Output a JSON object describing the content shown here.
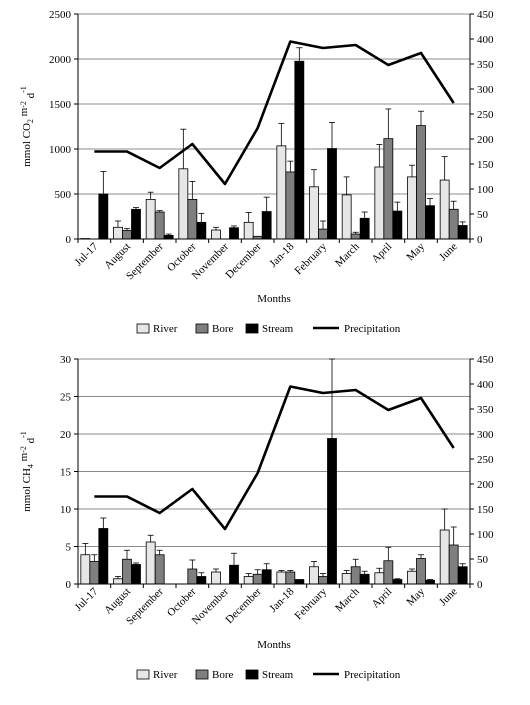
{
  "chart_data": [
    {
      "type": "bar",
      "categories": [
        "Jul-17",
        "August",
        "September",
        "October",
        "November",
        "December",
        "Jan-18",
        "February",
        "March",
        "April",
        "May",
        "June"
      ],
      "xlabel": "Months",
      "ylabel_main": "mmol CO",
      "ylabel_sub": "2",
      "ylabel_rest": " m",
      "ylabel_sup1": "-2",
      "ylabel_mid": " d",
      "ylabel_sup2": "-1",
      "ylim": [
        0,
        2500
      ],
      "yticks": [
        0,
        500,
        1000,
        1500,
        2000,
        2500
      ],
      "y2lim": [
        0,
        450
      ],
      "y2ticks": [
        0,
        50,
        100,
        150,
        200,
        250,
        300,
        350,
        400,
        450
      ],
      "grid": true,
      "legend_position": "bottom",
      "series": [
        {
          "name": "River",
          "kind": "bar",
          "color": "#e6e6e6",
          "values": [
            5,
            130,
            440,
            780,
            100,
            185,
            1035,
            580,
            490,
            800,
            690,
            655
          ],
          "errors": [
            0,
            70,
            80,
            440,
            30,
            110,
            250,
            190,
            200,
            250,
            130,
            260
          ]
        },
        {
          "name": "Bore",
          "kind": "bar",
          "color": "#7f7f7f",
          "values": [
            null,
            95,
            300,
            440,
            null,
            30,
            745,
            110,
            55,
            1115,
            1260,
            330
          ],
          "errors": [
            0,
            20,
            15,
            200,
            0,
            0,
            120,
            90,
            20,
            330,
            160,
            90
          ]
        },
        {
          "name": "Stream",
          "kind": "bar",
          "color": "#000000",
          "values": [
            500,
            330,
            40,
            185,
            125,
            305,
            1975,
            1005,
            230,
            310,
            370,
            150
          ],
          "errors": [
            250,
            20,
            15,
            100,
            20,
            160,
            150,
            290,
            70,
            100,
            80,
            40
          ]
        },
        {
          "name": "Precipitation",
          "kind": "line",
          "axis": "right",
          "color": "#000000",
          "values": [
            175,
            175,
            142,
            190,
            110,
            222,
            395,
            382,
            388,
            348,
            372,
            272
          ]
        }
      ]
    },
    {
      "type": "bar",
      "categories": [
        "Jul-17",
        "August",
        "September",
        "October",
        "November",
        "December",
        "Jan-18",
        "February",
        "March",
        "April",
        "May",
        "June"
      ],
      "xlabel": "Months",
      "ylabel_main": "mmol CH",
      "ylabel_sub": "4",
      "ylabel_rest": " m",
      "ylabel_sup1": "-2",
      "ylabel_mid": " d",
      "ylabel_sup2": "-1",
      "ylim": [
        0,
        30
      ],
      "yticks": [
        0,
        5,
        10,
        15,
        20,
        25,
        30
      ],
      "y2lim": [
        0,
        450
      ],
      "y2ticks": [
        0,
        50,
        100,
        150,
        200,
        250,
        300,
        350,
        400,
        450
      ],
      "grid": true,
      "legend_position": "bottom",
      "series": [
        {
          "name": "River",
          "kind": "bar",
          "color": "#e6e6e6",
          "values": [
            3.9,
            0.7,
            5.6,
            null,
            1.6,
            1.0,
            1.6,
            2.3,
            1.4,
            1.5,
            1.7,
            7.2
          ],
          "errors": [
            1.5,
            0.3,
            0.9,
            0,
            0.4,
            0.4,
            0.2,
            0.7,
            0.4,
            0.6,
            0.3,
            2.8
          ]
        },
        {
          "name": "Bore",
          "kind": "bar",
          "color": "#7f7f7f",
          "values": [
            3.0,
            3.3,
            3.9,
            2.0,
            null,
            1.3,
            1.6,
            1.0,
            2.3,
            3.1,
            3.4,
            5.2
          ],
          "errors": [
            0.9,
            1.2,
            0.6,
            1.2,
            0,
            0.6,
            0.2,
            0.4,
            1.0,
            1.8,
            0.5,
            2.4
          ]
        },
        {
          "name": "Stream",
          "kind": "bar",
          "color": "#000000",
          "values": [
            7.4,
            2.6,
            null,
            1.0,
            2.5,
            1.9,
            0.6,
            19.4,
            1.3,
            0.6,
            0.5,
            2.3
          ],
          "errors": [
            1.4,
            0.2,
            0,
            0.5,
            1.6,
            0.8,
            0,
            10.6,
            0.4,
            0.1,
            0.1,
            0.4
          ]
        },
        {
          "name": "Precipitation",
          "kind": "line",
          "axis": "right",
          "color": "#000000",
          "values": [
            175,
            175,
            142,
            190,
            110,
            222,
            395,
            382,
            388,
            348,
            372,
            272
          ]
        }
      ]
    }
  ]
}
